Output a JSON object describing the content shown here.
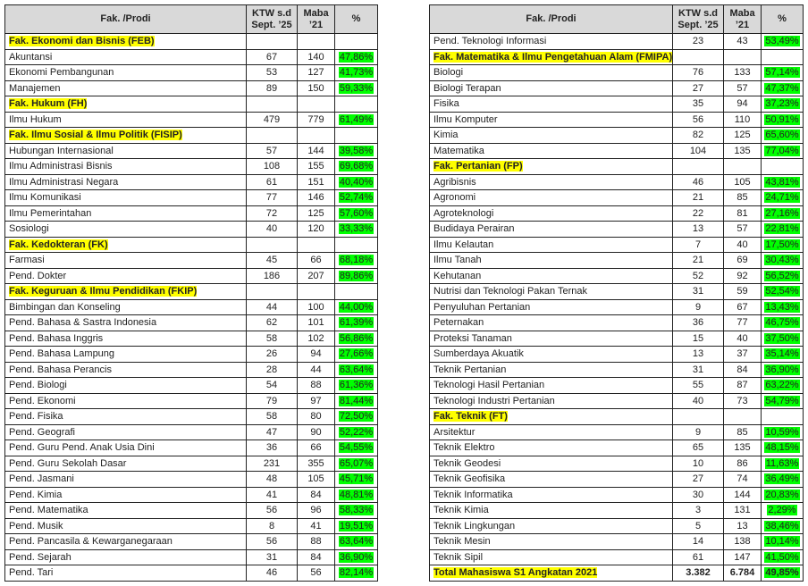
{
  "headers": {
    "prodi": "Fak. /Prodi",
    "ktw_line1": "KTW s.d",
    "ktw_line2": "Sept. ’25",
    "maba_line1": "Maba",
    "maba_line2": "’21",
    "pct": "%"
  },
  "colors": {
    "faculty_highlight": "#ffff00",
    "percent_highlight": "#00ff00",
    "header_bg": "#d9d9d9"
  },
  "left": [
    {
      "type": "faculty",
      "name": "Fak.  Ekonomi dan Bisnis (FEB)"
    },
    {
      "type": "prodi",
      "name": "Akuntansi",
      "ktw": "67",
      "maba": "140",
      "pct": "47,86%"
    },
    {
      "type": "prodi",
      "name": "Ekonomi Pembangunan",
      "ktw": "53",
      "maba": "127",
      "pct": "41,73%"
    },
    {
      "type": "prodi",
      "name": "Manajemen",
      "ktw": "89",
      "maba": "150",
      "pct": "59,33%"
    },
    {
      "type": "faculty",
      "name": "Fak.  Hukum (FH)"
    },
    {
      "type": "prodi",
      "name": "Ilmu Hukum",
      "ktw": "479",
      "maba": "779",
      "pct": "61,49%"
    },
    {
      "type": "faculty",
      "name": "Fak.  Ilmu Sosial & Ilmu Politik (FISIP)"
    },
    {
      "type": "prodi",
      "name": "Hubungan Internasional",
      "ktw": "57",
      "maba": "144",
      "pct": "39,58%"
    },
    {
      "type": "prodi",
      "name": "Ilmu Administrasi Bisnis",
      "ktw": "108",
      "maba": "155",
      "pct": "69,68%"
    },
    {
      "type": "prodi",
      "name": "Ilmu Administrasi Negara",
      "ktw": "61",
      "maba": "151",
      "pct": "40,40%"
    },
    {
      "type": "prodi",
      "name": "Ilmu Komunikasi",
      "ktw": "77",
      "maba": "146",
      "pct": "52,74%"
    },
    {
      "type": "prodi",
      "name": "Ilmu Pemerintahan",
      "ktw": "72",
      "maba": "125",
      "pct": "57,60%"
    },
    {
      "type": "prodi",
      "name": "Sosiologi",
      "ktw": "40",
      "maba": "120",
      "pct": "33,33%"
    },
    {
      "type": "faculty",
      "name": "Fak.  Kedokteran (FK)"
    },
    {
      "type": "prodi",
      "name": "Farmasi",
      "ktw": "45",
      "maba": "66",
      "pct": "68,18%"
    },
    {
      "type": "prodi",
      "name": "Pend.  Dokter",
      "ktw": "186",
      "maba": "207",
      "pct": "89,86%"
    },
    {
      "type": "faculty",
      "name": "Fak.  Keguruan & Ilmu Pendidikan (FKIP)"
    },
    {
      "type": "prodi",
      "name": "Bimbingan dan Konseling",
      "ktw": "44",
      "maba": "100",
      "pct": "44,00%"
    },
    {
      "type": "prodi",
      "name": "Pend.  Bahasa & Sastra Indonesia",
      "ktw": "62",
      "maba": "101",
      "pct": "61,39%"
    },
    {
      "type": "prodi",
      "name": "Pend.  Bahasa Inggris",
      "ktw": "58",
      "maba": "102",
      "pct": "56,86%"
    },
    {
      "type": "prodi",
      "name": "Pend.  Bahasa Lampung",
      "ktw": "26",
      "maba": "94",
      "pct": "27,66%"
    },
    {
      "type": "prodi",
      "name": "Pend.  Bahasa Perancis",
      "ktw": "28",
      "maba": "44",
      "pct": "63,64%"
    },
    {
      "type": "prodi",
      "name": "Pend.  Biologi",
      "ktw": "54",
      "maba": "88",
      "pct": "61,36%"
    },
    {
      "type": "prodi",
      "name": "Pend.  Ekonomi",
      "ktw": "79",
      "maba": "97",
      "pct": "81,44%"
    },
    {
      "type": "prodi",
      "name": "Pend.  Fisika",
      "ktw": "58",
      "maba": "80",
      "pct": "72,50%"
    },
    {
      "type": "prodi",
      "name": "Pend.  Geografi",
      "ktw": "47",
      "maba": "90",
      "pct": "52,22%"
    },
    {
      "type": "prodi",
      "name": "Pend.  Guru Pend.  Anak Usia Dini",
      "ktw": "36",
      "maba": "66",
      "pct": "54,55%"
    },
    {
      "type": "prodi",
      "name": "Pend.  Guru Sekolah Dasar",
      "ktw": "231",
      "maba": "355",
      "pct": "65,07%"
    },
    {
      "type": "prodi",
      "name": "Pend.  Jasmani",
      "ktw": "48",
      "maba": "105",
      "pct": "45,71%"
    },
    {
      "type": "prodi",
      "name": "Pend.  Kimia",
      "ktw": "41",
      "maba": "84",
      "pct": "48,81%"
    },
    {
      "type": "prodi",
      "name": "Pend.  Matematika",
      "ktw": "56",
      "maba": "96",
      "pct": "58,33%"
    },
    {
      "type": "prodi",
      "name": "Pend.  Musik",
      "ktw": "8",
      "maba": "41",
      "pct": "19,51%"
    },
    {
      "type": "prodi",
      "name": "Pend.  Pancasila & Kewarganegaraan",
      "ktw": "56",
      "maba": "88",
      "pct": "63,64%"
    },
    {
      "type": "prodi",
      "name": "Pend.  Sejarah",
      "ktw": "31",
      "maba": "84",
      "pct": "36,90%"
    },
    {
      "type": "prodi",
      "name": "Pend.  Tari",
      "ktw": "46",
      "maba": "56",
      "pct": "82,14%"
    }
  ],
  "right": [
    {
      "type": "prodi",
      "name": "Pend.  Teknologi Informasi",
      "ktw": "23",
      "maba": "43",
      "pct": "53,49%"
    },
    {
      "type": "faculty",
      "name": "Fak.  Matematika & Ilmu Pengetahuan Alam (FMIPA)"
    },
    {
      "type": "prodi",
      "name": "Biologi",
      "ktw": "76",
      "maba": "133",
      "pct": "57,14%"
    },
    {
      "type": "prodi",
      "name": "Biologi Terapan",
      "ktw": "27",
      "maba": "57",
      "pct": "47,37%"
    },
    {
      "type": "prodi",
      "name": "Fisika",
      "ktw": "35",
      "maba": "94",
      "pct": "37,23%"
    },
    {
      "type": "prodi",
      "name": "Ilmu Komputer",
      "ktw": "56",
      "maba": "110",
      "pct": "50,91%"
    },
    {
      "type": "prodi",
      "name": "Kimia",
      "ktw": "82",
      "maba": "125",
      "pct": "65,60%"
    },
    {
      "type": "prodi",
      "name": "Matematika",
      "ktw": "104",
      "maba": "135",
      "pct": "77,04%"
    },
    {
      "type": "faculty",
      "name": "Fak.  Pertanian (FP)"
    },
    {
      "type": "prodi",
      "name": "Agribisnis",
      "ktw": "46",
      "maba": "105",
      "pct": "43,81%"
    },
    {
      "type": "prodi",
      "name": "Agronomi",
      "ktw": "21",
      "maba": "85",
      "pct": "24,71%"
    },
    {
      "type": "prodi",
      "name": "Agroteknologi",
      "ktw": "22",
      "maba": "81",
      "pct": "27,16%"
    },
    {
      "type": "prodi",
      "name": "Budidaya Perairan",
      "ktw": "13",
      "maba": "57",
      "pct": "22,81%"
    },
    {
      "type": "prodi",
      "name": "Ilmu Kelautan",
      "ktw": "7",
      "maba": "40",
      "pct": "17,50%"
    },
    {
      "type": "prodi",
      "name": "Ilmu Tanah",
      "ktw": "21",
      "maba": "69",
      "pct": "30,43%"
    },
    {
      "type": "prodi",
      "name": "Kehutanan",
      "ktw": "52",
      "maba": "92",
      "pct": "56,52%"
    },
    {
      "type": "prodi",
      "name": "Nutrisi dan Teknologi Pakan Ternak",
      "ktw": "31",
      "maba": "59",
      "pct": "52,54%"
    },
    {
      "type": "prodi",
      "name": "Penyuluhan Pertanian",
      "ktw": "9",
      "maba": "67",
      "pct": "13,43%"
    },
    {
      "type": "prodi",
      "name": "Peternakan",
      "ktw": "36",
      "maba": "77",
      "pct": "46,75%"
    },
    {
      "type": "prodi",
      "name": "Proteksi Tanaman",
      "ktw": "15",
      "maba": "40",
      "pct": "37,50%"
    },
    {
      "type": "prodi",
      "name": "Sumberdaya Akuatik",
      "ktw": "13",
      "maba": "37",
      "pct": "35,14%"
    },
    {
      "type": "prodi",
      "name": "Teknik Pertanian",
      "ktw": "31",
      "maba": "84",
      "pct": "36,90%"
    },
    {
      "type": "prodi",
      "name": "Teknologi Hasil Pertanian",
      "ktw": "55",
      "maba": "87",
      "pct": "63,22%"
    },
    {
      "type": "prodi",
      "name": "Teknologi Industri Pertanian",
      "ktw": "40",
      "maba": "73",
      "pct": "54,79%"
    },
    {
      "type": "faculty",
      "name": "Fak.  Teknik (FT)"
    },
    {
      "type": "prodi",
      "name": "Arsitektur",
      "ktw": "9",
      "maba": "85",
      "pct": "10,59%"
    },
    {
      "type": "prodi",
      "name": "Teknik Elektro",
      "ktw": "65",
      "maba": "135",
      "pct": "48,15%"
    },
    {
      "type": "prodi",
      "name": "Teknik Geodesi",
      "ktw": "10",
      "maba": "86",
      "pct": "11,63%"
    },
    {
      "type": "prodi",
      "name": "Teknik Geofisika",
      "ktw": "27",
      "maba": "74",
      "pct": "36,49%"
    },
    {
      "type": "prodi",
      "name": "Teknik Informatika",
      "ktw": "30",
      "maba": "144",
      "pct": "20,83%"
    },
    {
      "type": "prodi",
      "name": "Teknik Kimia",
      "ktw": "3",
      "maba": "131",
      "pct": "2,29%"
    },
    {
      "type": "prodi",
      "name": "Teknik Lingkungan",
      "ktw": "5",
      "maba": "13",
      "pct": "38,46%"
    },
    {
      "type": "prodi",
      "name": "Teknik Mesin",
      "ktw": "14",
      "maba": "138",
      "pct": "10,14%"
    },
    {
      "type": "prodi",
      "name": "Teknik Sipil",
      "ktw": "61",
      "maba": "147",
      "pct": "41,50%"
    },
    {
      "type": "total",
      "name": "Total Mahasiswa S1 Angkatan 2021",
      "ktw": "3.382",
      "maba": "6.784",
      "pct": "49,85%"
    }
  ]
}
